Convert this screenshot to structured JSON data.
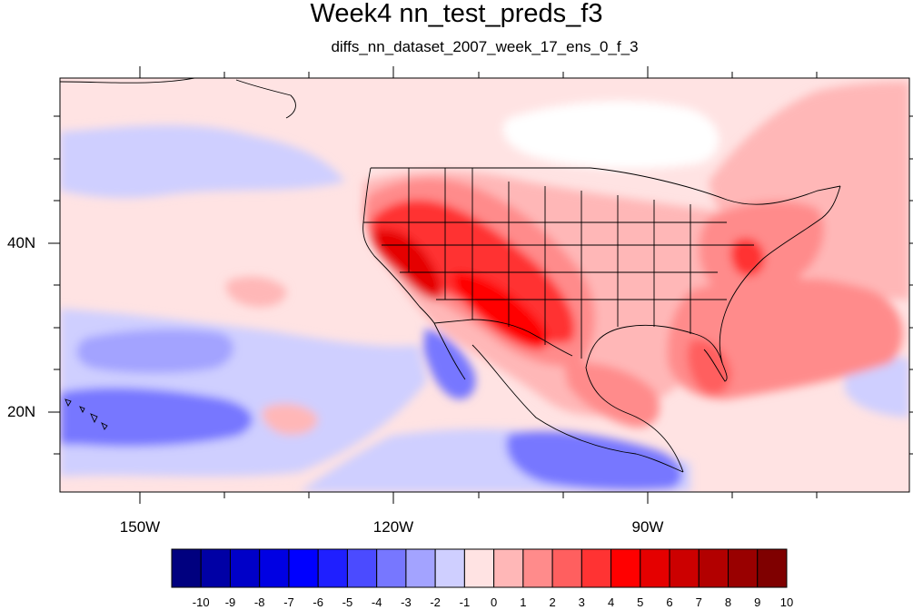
{
  "title": "Week4 nn_test_preds_f3",
  "subtitle": "diffs_nn_dataset_2007_week_17_ens_0_f_3",
  "axes": {
    "lat_labels": [
      "40N",
      "20N"
    ],
    "lon_labels": [
      "150W",
      "120W",
      "90W"
    ]
  },
  "colorbar": {
    "labels": [
      "-10",
      "-9",
      "-8",
      "-7",
      "-6",
      "-5",
      "-4",
      "-3",
      "-2",
      "-1",
      "0",
      "1",
      "2",
      "3",
      "4",
      "5",
      "6",
      "7",
      "8",
      "9",
      "10"
    ],
    "colors": [
      "#00007f",
      "#0000a5",
      "#0000c8",
      "#0000e3",
      "#0000ff",
      "#1f1fff",
      "#4b4bff",
      "#7777ff",
      "#a3a3ff",
      "#cfcfff",
      "#ffe3e3",
      "#ffb7b7",
      "#ff8b8b",
      "#ff5f5f",
      "#ff3333",
      "#ff0000",
      "#e50000",
      "#cc0000",
      "#b20000",
      "#990000",
      "#7f0000"
    ]
  },
  "colors": {
    "warm_accent": "#ff3333",
    "cool_accent": "#4b4bff",
    "coastline": "#000000"
  }
}
